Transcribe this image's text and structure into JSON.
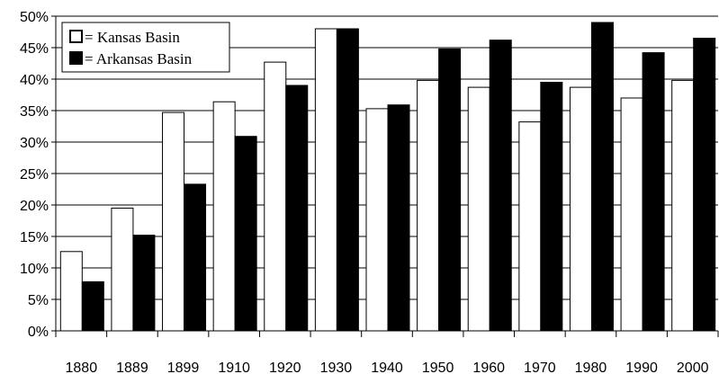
{
  "chart_data": {
    "type": "bar",
    "title": "",
    "xlabel": "",
    "ylabel": "",
    "categories": [
      "1880",
      "1889",
      "1899",
      "1910",
      "1920",
      "1930",
      "1940",
      "1950",
      "1960",
      "1970",
      "1980",
      "1990",
      "2000"
    ],
    "series": [
      {
        "name": "Kansas Basin",
        "color": "#ffffff",
        "values": [
          12.6,
          19.5,
          34.7,
          36.4,
          42.7,
          48.0,
          35.3,
          39.8,
          38.7,
          33.2,
          38.7,
          37.0,
          39.8
        ]
      },
      {
        "name": "Arkansas Basin",
        "color": "#000000",
        "values": [
          7.8,
          15.2,
          23.3,
          30.9,
          39.0,
          48.0,
          35.9,
          44.8,
          46.2,
          39.5,
          49.0,
          44.2,
          46.5
        ]
      }
    ],
    "ylim": [
      0,
      50
    ],
    "yticks": [
      "0%",
      "5%",
      "10%",
      "15%",
      "20%",
      "25%",
      "30%",
      "35%",
      "40%",
      "45%",
      "50%"
    ],
    "legend": {
      "placement": "top-left",
      "entries": [
        "= Kansas Basin",
        "= Arkansas Basin"
      ]
    },
    "grid": true
  }
}
